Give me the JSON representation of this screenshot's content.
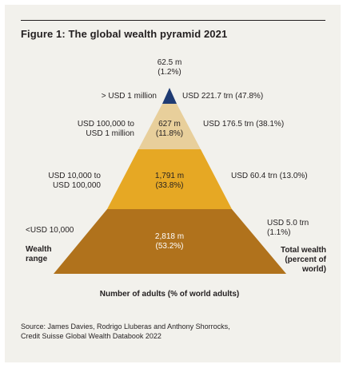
{
  "title": "Figure 1: The global wealth pyramid 2021",
  "tiers": [
    {
      "range": "> USD 1 million",
      "adults": "62.5 m",
      "adults_pct": "(1.2%)",
      "wealth": "USD 221.7 trn (47.8%)",
      "color": "#1f3b73"
    },
    {
      "range_line1": "USD 100,000 to",
      "range_line2": "USD 1 million",
      "adults": "627 m",
      "adults_pct": "(11.8%)",
      "wealth": "USD 176.5 trn (38.1%)",
      "color": "#e8cf9b"
    },
    {
      "range_line1": "USD 10,000 to",
      "range_line2": "USD 100,000",
      "adults": "1,791 m",
      "adults_pct": "(33.8%)",
      "wealth": "USD 60.4 trn (13.0%)",
      "color": "#e6a824"
    },
    {
      "range": "<USD 10,000",
      "adults": "2,818 m",
      "adults_pct": "(53.2%)",
      "wealth_line1": "USD 5.0 trn",
      "wealth_line2": "(1.1%)",
      "color": "#b0721c"
    }
  ],
  "left_axis_label": {
    "line1": "Wealth",
    "line2": "range"
  },
  "right_axis_label": {
    "line1": "Total wealth",
    "line2": "(percent of",
    "line3": "world)"
  },
  "bottom_label": "Number of adults (% of world adults)",
  "source": {
    "line1": "Source: James Davies, Rodrigo Lluberas and Anthony Shorrocks,",
    "line2": "Credit Suisse Global Wealth Databook 2022"
  }
}
